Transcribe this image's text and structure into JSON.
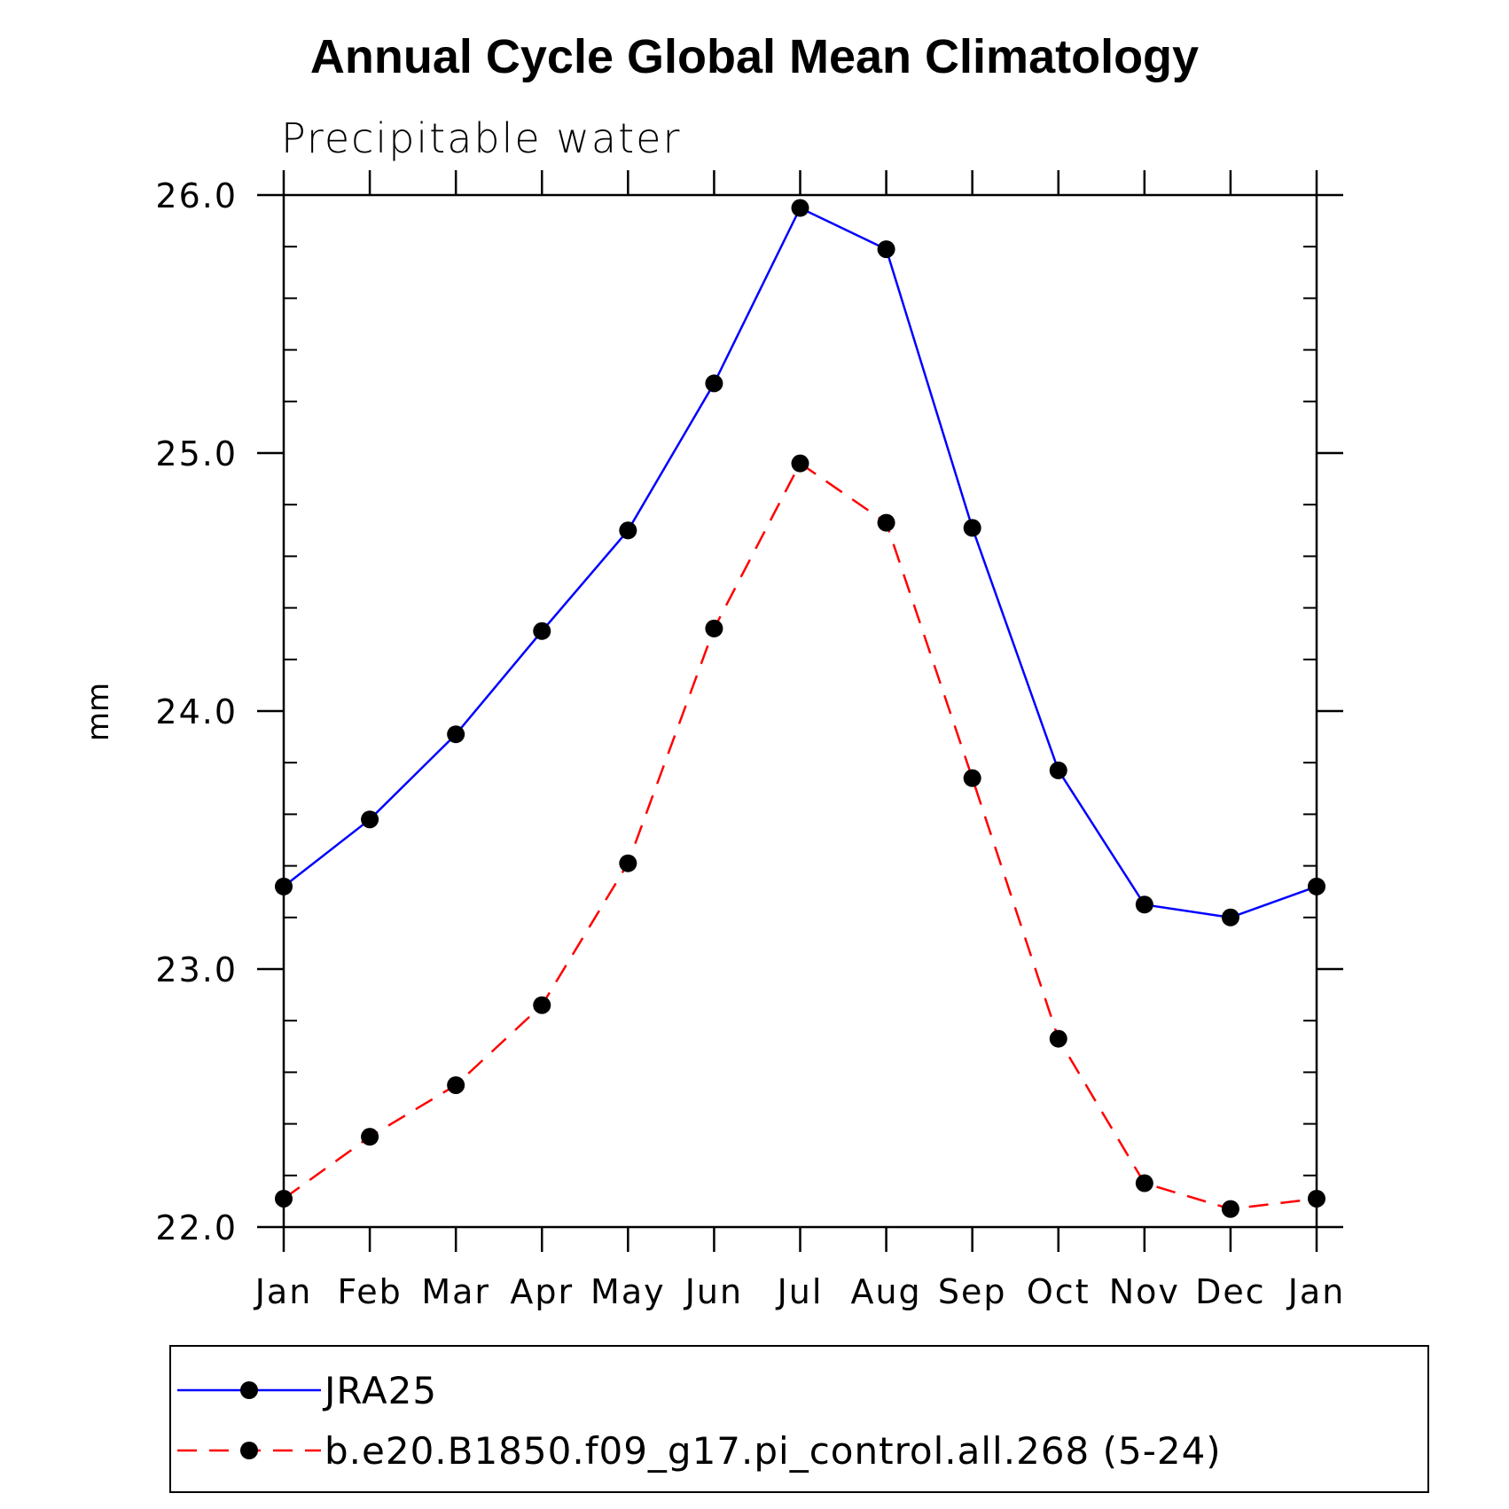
{
  "chart_data": {
    "type": "line",
    "title": "Annual Cycle Global Mean Climatology",
    "subtitle": "Precipitable water",
    "xlabel": "",
    "ylabel": "mm",
    "categories": [
      "Jan",
      "Feb",
      "Mar",
      "Apr",
      "May",
      "Jun",
      "Jul",
      "Aug",
      "Sep",
      "Oct",
      "Nov",
      "Dec",
      "Jan"
    ],
    "ylim": [
      22.0,
      26.0
    ],
    "yticks": [
      "22.0",
      "23.0",
      "24.0",
      "25.0",
      "26.0"
    ],
    "grid": false,
    "legend_position": "bottom",
    "series": [
      {
        "name": "JRA25",
        "color": "#0000ff",
        "line_style": "solid",
        "marker": "filled-circle",
        "values": [
          23.32,
          23.58,
          23.91,
          24.31,
          24.7,
          25.27,
          25.95,
          25.79,
          24.71,
          23.77,
          23.25,
          23.2,
          23.32
        ]
      },
      {
        "name": "b.e20.B1850.f09_g17.pi_control.all.268 (5-24)",
        "color": "#ff0000",
        "line_style": "dashed",
        "marker": "filled-circle",
        "values": [
          22.11,
          22.35,
          22.55,
          22.86,
          23.41,
          24.32,
          24.96,
          24.73,
          23.74,
          22.73,
          22.17,
          22.07,
          22.11
        ]
      }
    ]
  }
}
